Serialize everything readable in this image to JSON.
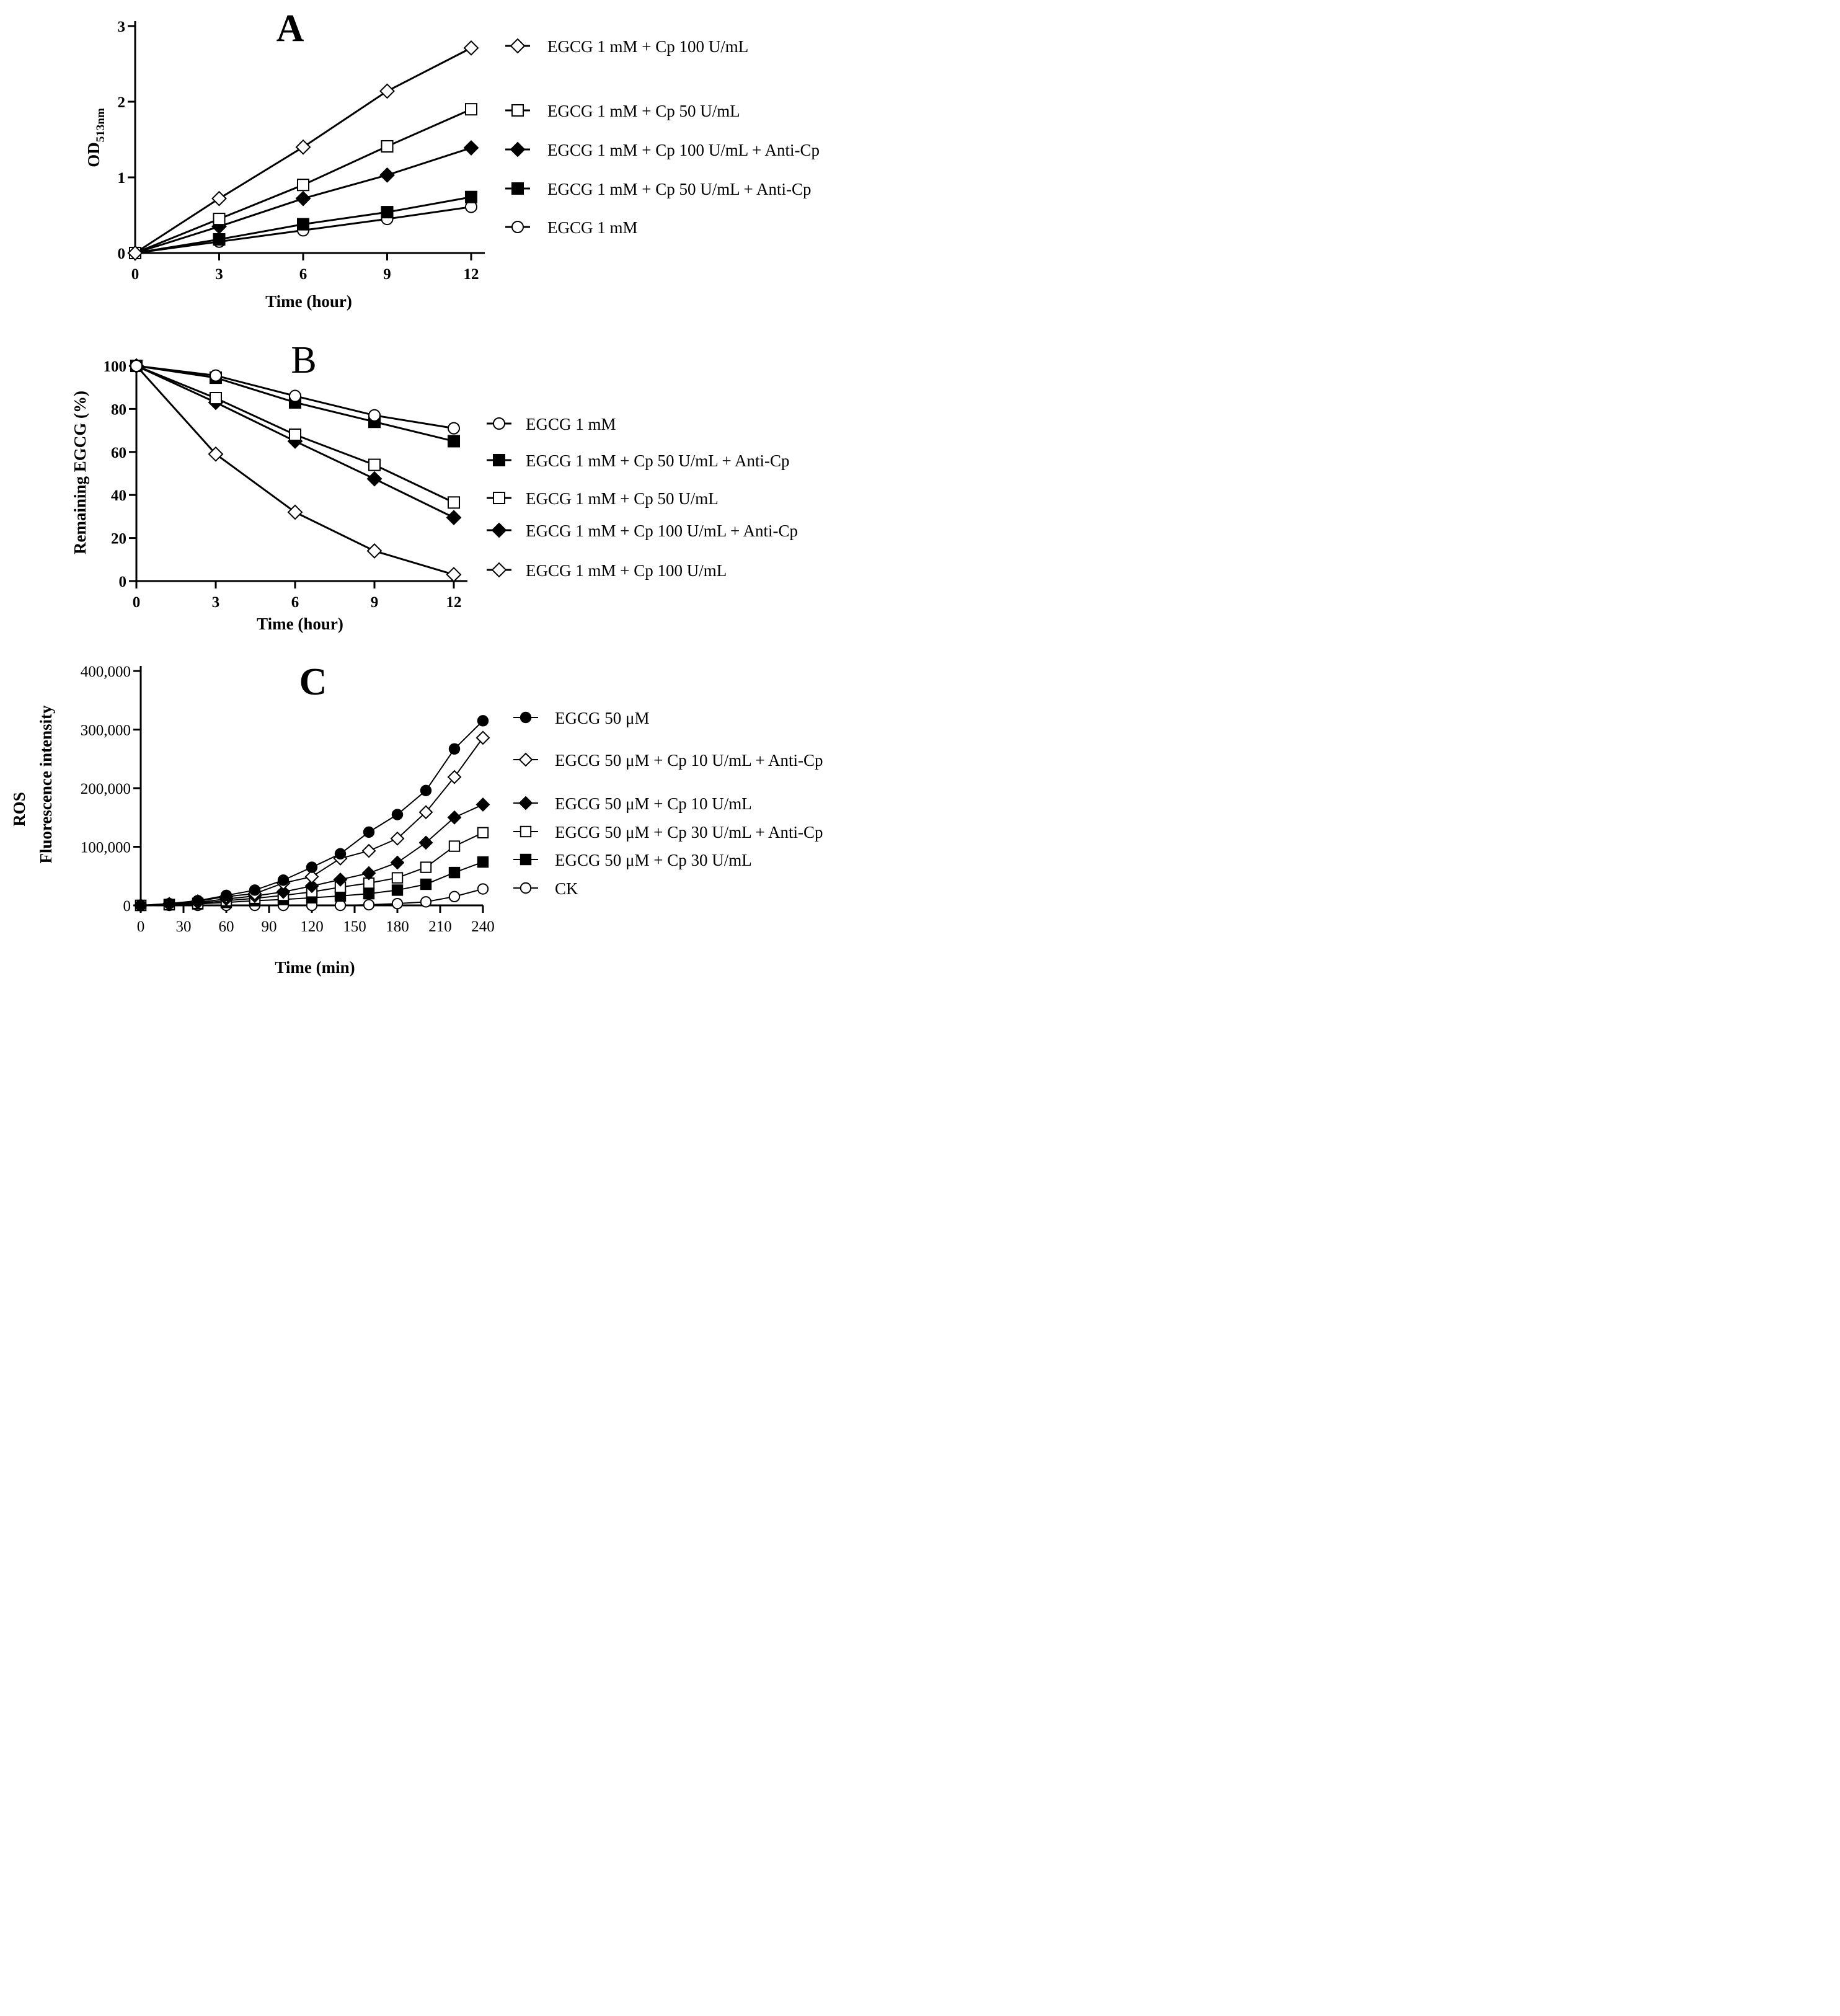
{
  "panels": [
    {
      "letter": "A",
      "chart_data": {
        "type": "line",
        "title": "",
        "xlabel": "Time (hour)",
        "ylabel_main": "OD",
        "ylabel_sub": "513nm",
        "x": [
          0,
          3,
          6,
          9,
          12
        ],
        "xlim": [
          0,
          12
        ],
        "ylim": [
          0,
          3
        ],
        "xticks": [
          "0",
          "3",
          "6",
          "9",
          "12"
        ],
        "yticks": [
          "0",
          "1",
          "2",
          "3"
        ],
        "grid": false,
        "legend_position": "right",
        "series": [
          {
            "name": "EGCG 1 mM + Cp 100 U/mL",
            "marker": "diamond-open",
            "values": [
              0,
              0.72,
              1.4,
              2.14,
              2.71
            ]
          },
          {
            "name": "EGCG 1 mM + Cp 50 U/mL",
            "marker": "square-open",
            "values": [
              0,
              0.45,
              0.9,
              1.41,
              1.9
            ]
          },
          {
            "name": "EGCG 1 mM + Cp 100 U/mL + Anti-Cp",
            "marker": "diamond-filled",
            "values": [
              0,
              0.35,
              0.72,
              1.03,
              1.39
            ]
          },
          {
            "name": "EGCG 1 mM + Cp 50 U/mL + Anti-Cp",
            "marker": "square-filled",
            "values": [
              0,
              0.18,
              0.38,
              0.54,
              0.74
            ]
          },
          {
            "name": "EGCG 1 mM",
            "marker": "circle-open",
            "values": [
              0,
              0.15,
              0.3,
              0.45,
              0.61
            ]
          }
        ]
      }
    },
    {
      "letter": "B",
      "chart_data": {
        "type": "line",
        "title": "",
        "xlabel": "Time (hour)",
        "ylabel": "Remaining EGCG (%)",
        "x": [
          0,
          3,
          6,
          9,
          12
        ],
        "xlim": [
          0,
          12
        ],
        "ylim": [
          0,
          100
        ],
        "xticks": [
          "0",
          "3",
          "6",
          "9",
          "12"
        ],
        "yticks": [
          "0",
          "20",
          "40",
          "60",
          "80",
          "100"
        ],
        "grid": false,
        "legend_position": "right",
        "series": [
          {
            "name": "EGCG 1 mM",
            "marker": "circle-open",
            "values": [
              100,
              95.5,
              86,
              77,
              71
            ]
          },
          {
            "name": "EGCG 1 mM + Cp 50 U/mL + Anti-Cp",
            "marker": "square-filled",
            "values": [
              100,
              94.5,
              83,
              74,
              65
            ]
          },
          {
            "name": "EGCG 1 mM + Cp 50 U/mL",
            "marker": "square-open",
            "values": [
              100,
              85,
              68,
              54,
              36.5
            ]
          },
          {
            "name": "EGCG 1 mM + Cp 100 U/mL + Anti-Cp",
            "marker": "diamond-filled",
            "values": [
              100,
              83,
              65,
              47.5,
              29.5
            ]
          },
          {
            "name": "EGCG 1 mM + Cp 100 U/mL",
            "marker": "diamond-open",
            "values": [
              100,
              59,
              32,
              14,
              3
            ]
          }
        ]
      }
    },
    {
      "letter": "C",
      "chart_data": {
        "type": "line",
        "title": "",
        "xlabel": "Time (min)",
        "ylabel_line1": "ROS",
        "ylabel_line2": "Fluorescence intensity",
        "x": [
          0,
          20,
          40,
          60,
          80,
          100,
          120,
          140,
          160,
          180,
          200,
          220,
          240
        ],
        "xlim": [
          0,
          240
        ],
        "ylim": [
          0,
          400000
        ],
        "xticks": [
          "0",
          "30",
          "60",
          "90",
          "120",
          "150",
          "180",
          "210",
          "240"
        ],
        "yticks": [
          "0",
          "100,000",
          "200,000",
          "300,000",
          "400,000"
        ],
        "grid": false,
        "legend_position": "right",
        "series": [
          {
            "name": "EGCG 50 μM",
            "marker": "circle-filled",
            "values": [
              0,
              3000,
              8000,
              17000,
              26000,
              43000,
              65000,
              88000,
              125000,
              155000,
              196000,
              267000,
              315000
            ]
          },
          {
            "name": "EGCG 50 μM + Cp 10 U/mL + Anti-Cp",
            "marker": "diamond-open",
            "values": [
              0,
              2500,
              7000,
              15000,
              20000,
              38000,
              49000,
              80000,
              93000,
              114000,
              159000,
              219000,
              286000
            ]
          },
          {
            "name": "EGCG 50 μM + Cp 10 U/mL",
            "marker": "diamond-filled",
            "values": [
              0,
              2000,
              5000,
              11000,
              16000,
              23000,
              33000,
              44000,
              55000,
              73000,
              107000,
              150000,
              172000
            ]
          },
          {
            "name": "EGCG 50 μM + Cp 30 U/mL + Anti-Cp",
            "marker": "square-open",
            "values": [
              0,
              1500,
              3500,
              8000,
              12000,
              17000,
              23000,
              31000,
              38000,
              47000,
              65000,
              101000,
              124000
            ]
          },
          {
            "name": "EGCG 50 μM + Cp 30 U/mL",
            "marker": "square-filled",
            "values": [
              0,
              1000,
              2500,
              5000,
              8000,
              10000,
              13000,
              16000,
              20000,
              26000,
              36000,
              56000,
              74000
            ]
          },
          {
            "name": "CK",
            "marker": "circle-open",
            "values": [
              0,
              0,
              0,
              0,
              0,
              0,
              0,
              0,
              1000,
              3000,
              6000,
              15000,
              28000
            ]
          }
        ]
      }
    }
  ]
}
